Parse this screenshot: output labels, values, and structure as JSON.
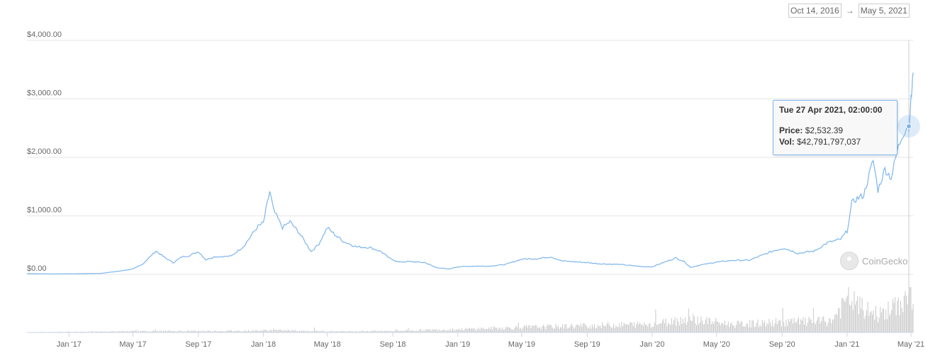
{
  "date_range": {
    "from": "Oct 14, 2016",
    "arrow": "→",
    "to": "May 5, 2021"
  },
  "tooltip": {
    "date": "Tue 27 Apr 2021, 02:00:00",
    "price_label": "Price:",
    "price_value": "$2,532.39",
    "vol_label": "Vol:",
    "vol_value": "$42,791,797,037"
  },
  "watermark": "CoinGecko",
  "colors": {
    "line": "#7cb5ec",
    "volume": "#c8c8c8",
    "grid": "#e6e6e6",
    "axis": "#ccd6eb"
  },
  "chart_data": {
    "type": "line",
    "title": "",
    "xlabel": "",
    "ylabel": "",
    "ylim": [
      0,
      4000
    ],
    "y_ticks": [
      "$0.00",
      "$1,000.00",
      "$2,000.00",
      "$3,000.00",
      "$4,000.00"
    ],
    "x_ticks": [
      {
        "label": "Jan '17",
        "date": "2017-01-01"
      },
      {
        "label": "May '17",
        "date": "2017-05-01"
      },
      {
        "label": "Sep '17",
        "date": "2017-09-01"
      },
      {
        "label": "Jan '18",
        "date": "2018-01-01"
      },
      {
        "label": "May '18",
        "date": "2018-05-01"
      },
      {
        "label": "Sep '18",
        "date": "2018-09-01"
      },
      {
        "label": "Jan '19",
        "date": "2019-01-01"
      },
      {
        "label": "May '19",
        "date": "2019-05-01"
      },
      {
        "label": "Sep '19",
        "date": "2019-09-01"
      },
      {
        "label": "Jan '20",
        "date": "2020-01-01"
      },
      {
        "label": "May '20",
        "date": "2020-05-01"
      },
      {
        "label": "Sep '20",
        "date": "2020-09-01"
      },
      {
        "label": "Jan '21",
        "date": "2021-01-01"
      },
      {
        "label": "May '21",
        "date": "2021-05-01"
      }
    ],
    "grid": true,
    "legend": "none",
    "series": [
      {
        "x": [
          "2016-10-14",
          "2016-12-01",
          "2017-01-15",
          "2017-03-01",
          "2017-04-01",
          "2017-05-01",
          "2017-05-20",
          "2017-06-13",
          "2017-07-01",
          "2017-07-16",
          "2017-08-01",
          "2017-08-15",
          "2017-09-01",
          "2017-09-15",
          "2017-10-01",
          "2017-11-01",
          "2017-11-25",
          "2017-12-12",
          "2017-12-22",
          "2018-01-01",
          "2018-01-13",
          "2018-01-20",
          "2018-02-06",
          "2018-02-20",
          "2018-03-10",
          "2018-04-01",
          "2018-04-15",
          "2018-05-01",
          "2018-05-15",
          "2018-06-01",
          "2018-06-25",
          "2018-07-20",
          "2018-08-10",
          "2018-08-25",
          "2018-09-12",
          "2018-10-01",
          "2018-11-01",
          "2018-11-20",
          "2018-12-15",
          "2019-01-01",
          "2019-02-01",
          "2019-03-01",
          "2019-04-01",
          "2019-05-01",
          "2019-06-01",
          "2019-06-25",
          "2019-07-15",
          "2019-08-01",
          "2019-09-01",
          "2019-09-25",
          "2019-10-15",
          "2019-11-01",
          "2019-12-15",
          "2020-01-01",
          "2020-02-14",
          "2020-03-01",
          "2020-03-13",
          "2020-04-01",
          "2020-05-01",
          "2020-06-01",
          "2020-07-01",
          "2020-08-15",
          "2020-09-05",
          "2020-10-01",
          "2020-11-01",
          "2020-11-25",
          "2020-12-20",
          "2021-01-01",
          "2021-01-10",
          "2021-01-20",
          "2021-02-01",
          "2021-02-19",
          "2021-02-28",
          "2021-03-13",
          "2021-03-25",
          "2021-04-05",
          "2021-04-15",
          "2021-04-25",
          "2021-04-27",
          "2021-05-01",
          "2021-05-03",
          "2021-05-05"
        ],
        "y": [
          12,
          8,
          10,
          16,
          50,
          90,
          180,
          400,
          280,
          200,
          300,
          320,
          390,
          250,
          300,
          310,
          480,
          700,
          820,
          880,
          1420,
          1100,
          800,
          900,
          700,
          390,
          520,
          800,
          680,
          560,
          470,
          460,
          390,
          280,
          210,
          220,
          200,
          120,
          90,
          130,
          140,
          140,
          170,
          260,
          270,
          300,
          230,
          220,
          200,
          180,
          175,
          170,
          130,
          130,
          280,
          220,
          120,
          160,
          210,
          240,
          240,
          400,
          450,
          360,
          400,
          540,
          600,
          740,
          1220,
          1300,
          1350,
          1950,
          1440,
          1800,
          1650,
          2100,
          2400,
          2550,
          2532,
          2950,
          3200,
          3450
        ]
      }
    ],
    "volume": {
      "x": [
        "2016-10-14",
        "2017-06-01",
        "2017-12-01",
        "2018-01-15",
        "2018-06-01",
        "2018-09-01",
        "2019-01-01",
        "2019-05-01",
        "2019-09-01",
        "2020-01-01",
        "2020-03-13",
        "2020-06-01",
        "2020-09-01",
        "2020-12-01",
        "2021-01-04",
        "2021-02-01",
        "2021-03-01",
        "2021-04-01",
        "2021-05-05"
      ],
      "y": [
        0.3,
        1.2,
        1.5,
        2.0,
        1.0,
        1.5,
        2.8,
        4.5,
        6.0,
        7.5,
        12.0,
        7.0,
        9.0,
        10.0,
        30.0,
        20.0,
        16.0,
        22.0,
        35.0
      ]
    }
  }
}
